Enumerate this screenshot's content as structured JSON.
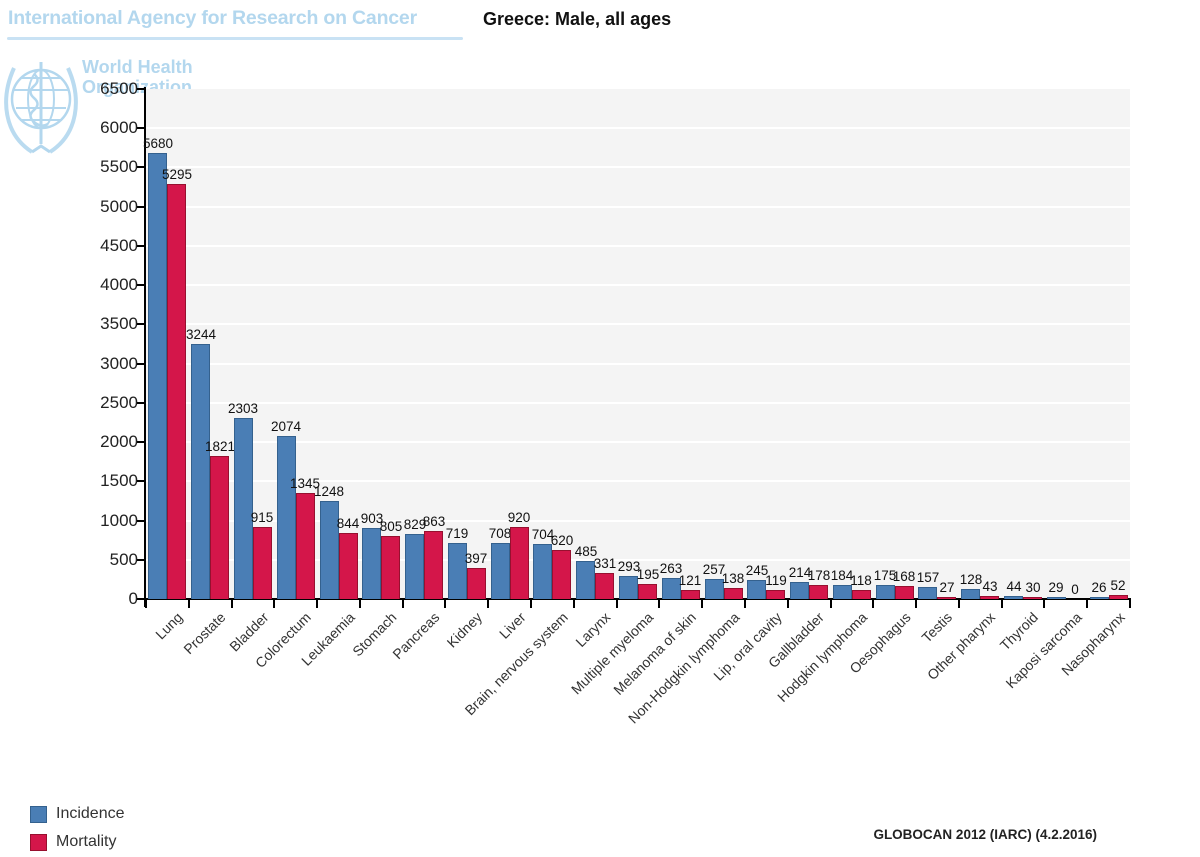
{
  "header": {
    "agency": "International Agency for Research on Cancer",
    "who_line1": "World Health",
    "who_line2": "Organization",
    "chart_title": "Greece: Male, all ages"
  },
  "legend": {
    "incidence": "Incidence",
    "mortality": "Mortality"
  },
  "footer": {
    "source": "GLOBOCAN 2012 (IARC) (4.2.2016)"
  },
  "colors": {
    "incidence_fill": "#4a7eb5",
    "incidence_border": "#34618e",
    "mortality_fill": "#d4164a",
    "mortality_border": "#97102f",
    "plot_background": "#f4f4f4",
    "gridline": "#ffffff",
    "axis": "#000000",
    "header_blue": "#b3d7ee"
  },
  "chart_data": {
    "type": "bar",
    "title": "Greece: Male, all ages",
    "xlabel": "",
    "ylabel": "",
    "ylim": [
      0,
      6500
    ],
    "ytick_step": 500,
    "grid": true,
    "legend_position": "bottom-left",
    "categories": [
      "Lung",
      "Prostate",
      "Bladder",
      "Colorectum",
      "Leukaemia",
      "Stomach",
      "Pancreas",
      "Kidney",
      "Liver",
      "Brain, nervous system",
      "Larynx",
      "Multiple myeloma",
      "Melanoma of skin",
      "Non-Hodgkin lymphoma",
      "Lip, oral cavity",
      "Gallbladder",
      "Hodgkin lymphoma",
      "Oesophagus",
      "Testis",
      "Other pharynx",
      "Thyroid",
      "Kaposi sarcoma",
      "Nasopharynx"
    ],
    "series": [
      {
        "name": "Incidence",
        "color": "#4a7eb5",
        "values": [
          5680,
          3244,
          2303,
          2074,
          1248,
          903,
          829,
          719,
          708,
          704,
          485,
          293,
          263,
          257,
          245,
          214,
          184,
          175,
          157,
          128,
          44,
          29,
          26
        ]
      },
      {
        "name": "Mortality",
        "color": "#d4164a",
        "values": [
          5295,
          1821,
          915,
          1345,
          844,
          805,
          863,
          397,
          920,
          620,
          331,
          195,
          121,
          138,
          119,
          178,
          118,
          168,
          27,
          43,
          30,
          0,
          52
        ]
      }
    ]
  }
}
